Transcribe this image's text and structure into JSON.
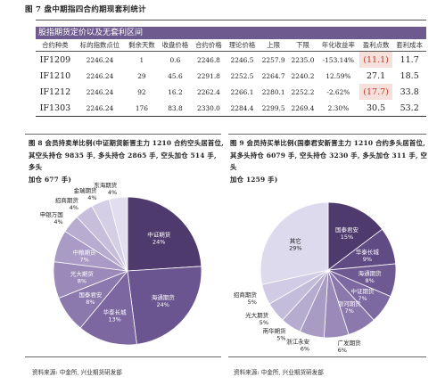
{
  "figure7": {
    "title": "图 7 盘中期指四合约期现套利统计",
    "banner": "股指期货定价以及无套利区间",
    "headers": [
      "合约种类",
      "标的指数点位",
      "剩余天数",
      "收盘价格",
      "合约价格",
      "理论价格",
      "上限",
      "下限",
      "年化收益率",
      "盈利点数",
      "套利成本"
    ],
    "rows": [
      [
        "IF1209",
        "2246.24",
        "1",
        "0.6",
        "2246.8",
        "2246.5",
        "2257.9",
        "2235.0",
        "-153.14%",
        "(11.1)",
        "11.7"
      ],
      [
        "IF1210",
        "2246.24",
        "29",
        "45.6",
        "2291.8",
        "2252.5",
        "2264.7",
        "2240.2",
        "12.59%",
        "27.1",
        "18.5"
      ],
      [
        "IF1212",
        "2246.24",
        "92",
        "16.2",
        "2262.4",
        "2266.1",
        "2280.1",
        "2252.2",
        "-2.62%",
        "(17.7)",
        "33.8"
      ],
      [
        "IF1303",
        "2246.24",
        "176",
        "83.8",
        "2330.0",
        "2284.4",
        "2299.5",
        "2269.4",
        "2.30%",
        "30.5",
        "53.2"
      ]
    ]
  },
  "figure8": {
    "caption_lines": [
      "图 8  会员持卖单比例(中证期货新晋主力 1210 合约空头居首位,",
      "其空头持仓 9835 手, 多头持仓 2865 手, 空头加仓 514 手, 多头",
      "加仓 677 手)"
    ],
    "source": "资料来源: 中金所, 兴业期货研发部",
    "chart_data": {
      "type": "pie",
      "slices": [
        {
          "label": "中证期货",
          "value": 24,
          "color": "#4f3a6d"
        },
        {
          "label": "海通期货",
          "value": 24,
          "color": "#6b5590"
        },
        {
          "label": "华泰长城",
          "value": 13,
          "color": "#7c67a0"
        },
        {
          "label": "国泰君安",
          "value": 8,
          "color": "#8b78ad"
        },
        {
          "label": "光大期货",
          "value": 8,
          "color": "#9a89b9"
        },
        {
          "label": "中粮期货",
          "value": 7,
          "color": "#a99bc5"
        },
        {
          "label": "申银万国",
          "value": 4,
          "color": "#b8acd1"
        },
        {
          "label": "招商期货",
          "value": 4,
          "color": "#c7bedc"
        },
        {
          "label": "金瑞期货",
          "value": 4,
          "color": "#d5cfe6"
        },
        {
          "label": "东海期货",
          "value": 4,
          "color": "#e2ddef"
        }
      ]
    }
  },
  "figure9": {
    "caption_lines": [
      "图 9  会员持买单比例(国泰君安新晋主力 1210 合约多头居首位,",
      "其多头持仓 6079 手, 空头持仓 3230 手, 多头加仓 311 手, 空头",
      "加仓 1259 手)"
    ],
    "source": "资料来源: 中金所, 兴业期货研发部",
    "chart_data": {
      "type": "pie",
      "slices": [
        {
          "label": "国泰君安",
          "value": 15,
          "color": "#4f3a6d"
        },
        {
          "label": "华泰长城",
          "value": 9,
          "color": "#614b85"
        },
        {
          "label": "海通期货",
          "value": 8,
          "color": "#6f5993"
        },
        {
          "label": "中证期货",
          "value": 7,
          "color": "#7d69a1"
        },
        {
          "label": "银河期货",
          "value": 7,
          "color": "#8b79ad"
        },
        {
          "label": "广发期货",
          "value": 6,
          "color": "#9a8ab9"
        },
        {
          "label": "浙江永安",
          "value": 6,
          "color": "#a89bc4"
        },
        {
          "label": "南华期货",
          "value": 5,
          "color": "#b6acd0"
        },
        {
          "label": "光大期货",
          "value": 5,
          "color": "#c4bcdb"
        },
        {
          "label": "招商期货",
          "value": 5,
          "color": "#d1cbe5"
        },
        {
          "label": "其它",
          "value": 29,
          "color": "#dedaee"
        }
      ]
    }
  }
}
